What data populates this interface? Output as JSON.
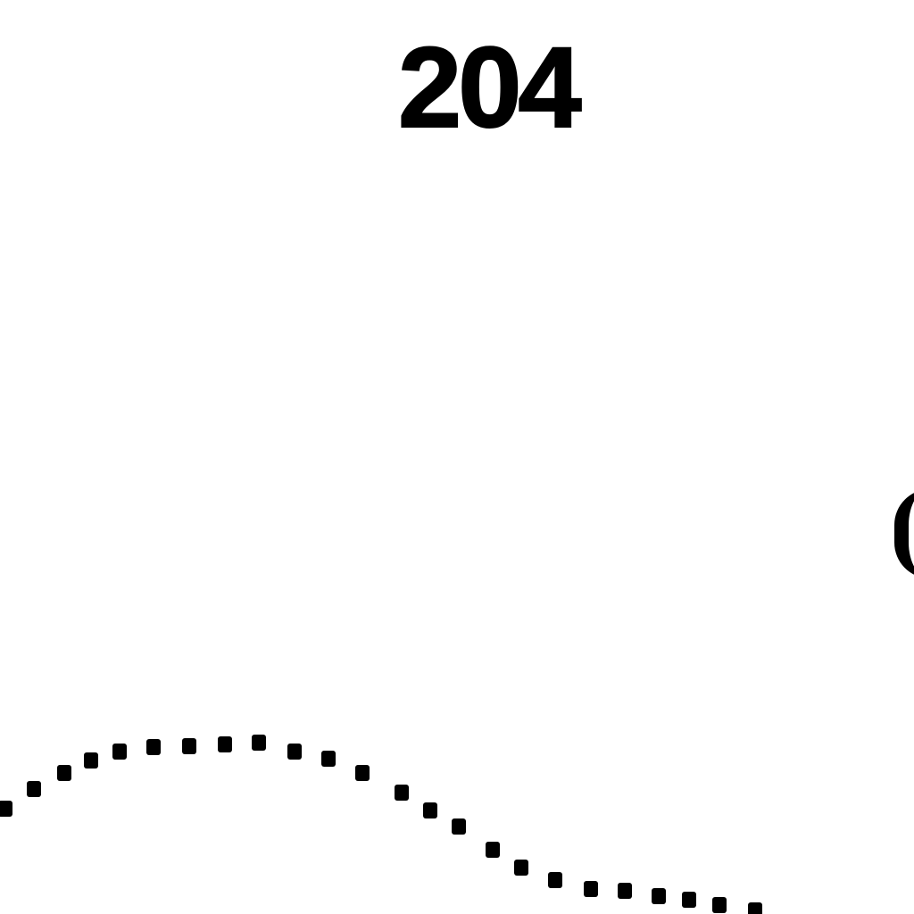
{
  "page": {
    "number": "204",
    "ink_color": "#000000",
    "background_color": "#ffffff"
  }
}
